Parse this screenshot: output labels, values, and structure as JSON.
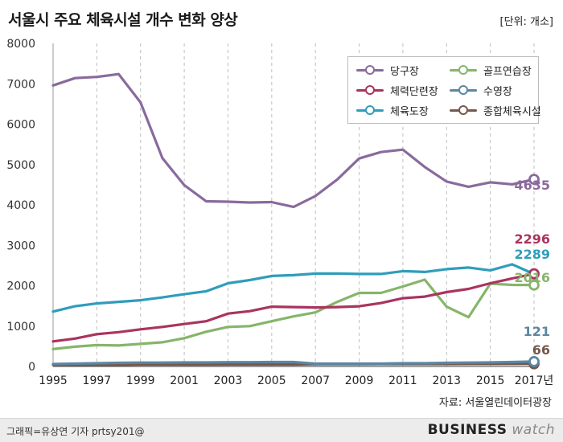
{
  "header": {
    "title": "서울시 주요 체육시설 개수 변화 양상",
    "unit": "[단위: 개소]"
  },
  "source": "자료: 서울열린데이터광장",
  "footer": {
    "credit": "그래픽=유상연 기자 prtsy201@",
    "logo_bold": "BUSINESS",
    "logo_light": "watch"
  },
  "chart_data": {
    "type": "line",
    "x": [
      1995,
      1996,
      1997,
      1998,
      1999,
      2000,
      2001,
      2002,
      2003,
      2004,
      2005,
      2006,
      2007,
      2008,
      2009,
      2010,
      2011,
      2012,
      2013,
      2014,
      2015,
      2016,
      2017
    ],
    "x_tick_labels": [
      "1995",
      "1997",
      "1999",
      "2001",
      "2003",
      "2005",
      "2007",
      "2009",
      "2011",
      "2013",
      "2015",
      "2017년"
    ],
    "y_ticks": [
      "0",
      "1000",
      "2000",
      "3000",
      "4000",
      "5000",
      "6000",
      "7000",
      "8000"
    ],
    "ylim": [
      0,
      8000
    ],
    "xlim": [
      1995,
      2017
    ],
    "series": [
      {
        "name": "당구장",
        "color": "#8a6a9c",
        "values": [
          6960,
          7140,
          7170,
          7240,
          6540,
          5160,
          4490,
          4090,
          4080,
          4060,
          4070,
          3950,
          4220,
          4630,
          5150,
          5310,
          5370,
          4940,
          4580,
          4450,
          4560,
          4510,
          4635
        ],
        "end_label": "4635"
      },
      {
        "name": "체력단련장",
        "color": "#a9345f",
        "values": [
          620,
          690,
          800,
          850,
          920,
          980,
          1050,
          1120,
          1310,
          1370,
          1480,
          1470,
          1460,
          1470,
          1490,
          1570,
          1690,
          1730,
          1840,
          1920,
          2060,
          2180,
          2296
        ],
        "end_label": "2296"
      },
      {
        "name": "체육도장",
        "color": "#2f9dbb",
        "values": [
          1360,
          1490,
          1560,
          1600,
          1640,
          1710,
          1790,
          1860,
          2060,
          2140,
          2240,
          2260,
          2300,
          2300,
          2290,
          2290,
          2360,
          2340,
          2410,
          2450,
          2380,
          2530,
          2289
        ],
        "end_label": "2289"
      },
      {
        "name": "골프연습장",
        "color": "#86b56a",
        "values": [
          430,
          490,
          530,
          520,
          560,
          600,
          700,
          860,
          980,
          1000,
          1120,
          1240,
          1340,
          1600,
          1820,
          1820,
          1980,
          2150,
          1480,
          1220,
          2050,
          2020,
          2016
        ],
        "end_label": "2016"
      },
      {
        "name": "수영장",
        "color": "#5d86a3",
        "values": [
          60,
          70,
          80,
          90,
          95,
          95,
          100,
          100,
          105,
          105,
          110,
          110,
          70,
          70,
          70,
          70,
          80,
          80,
          90,
          95,
          100,
          110,
          121
        ],
        "end_label": "121"
      },
      {
        "name": "종합체육시설",
        "color": "#75584a",
        "values": [
          40,
          40,
          40,
          40,
          45,
          45,
          45,
          45,
          50,
          50,
          50,
          50,
          55,
          55,
          55,
          60,
          60,
          60,
          60,
          62,
          62,
          64,
          66
        ],
        "end_label": "66"
      }
    ],
    "legend_position": "top-right",
    "grid": "vertical dashed lines at labeled years"
  }
}
